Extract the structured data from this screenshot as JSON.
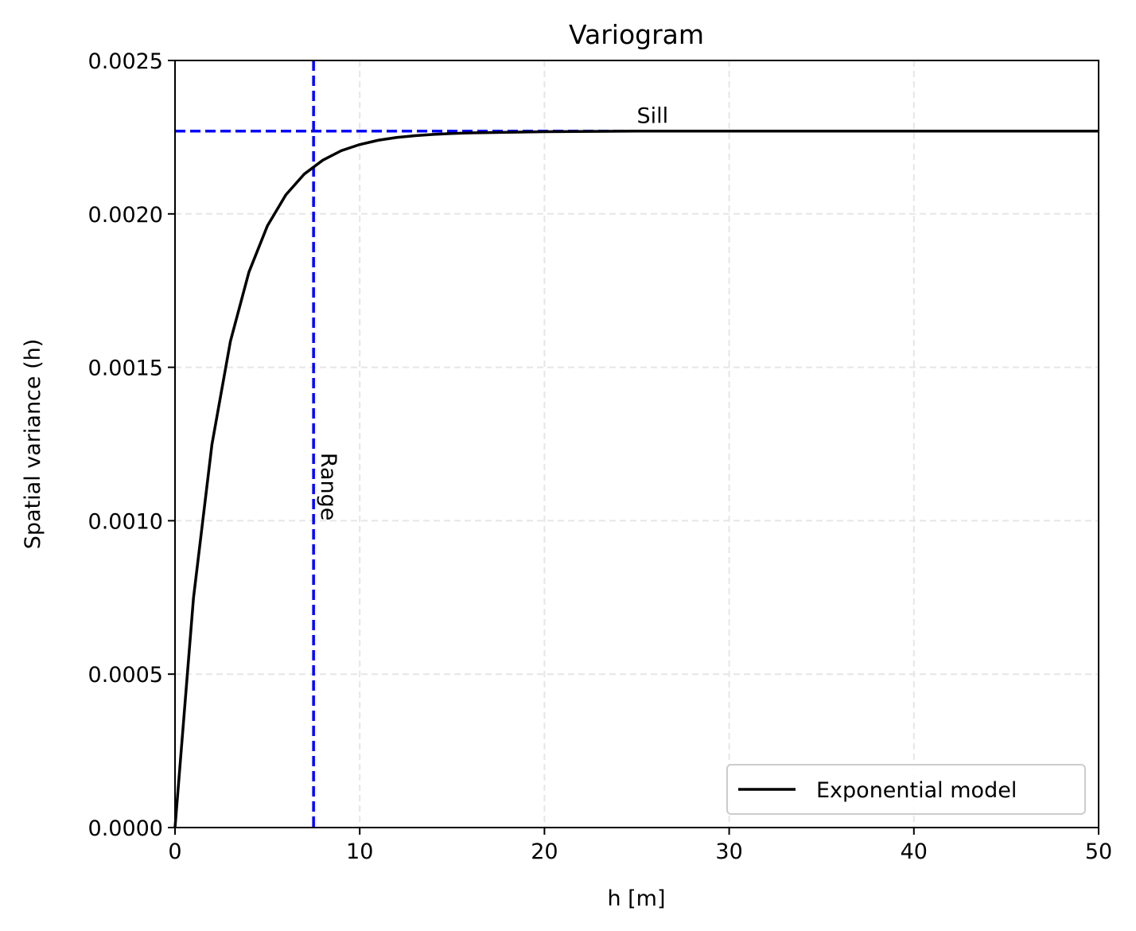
{
  "chart_data": {
    "type": "line",
    "title": "Variogram",
    "xlabel": "h [m]",
    "ylabel": "Spatial variance (h)",
    "xlim": [
      0,
      50
    ],
    "ylim": [
      0,
      0.0025
    ],
    "xticks": [
      0,
      10,
      20,
      30,
      40,
      50
    ],
    "xtick_labels": [
      "0",
      "10",
      "20",
      "30",
      "40",
      "50"
    ],
    "yticks": [
      0,
      0.0005,
      0.001,
      0.0015,
      0.002,
      0.0025
    ],
    "ytick_labels": [
      "0.0000",
      "0.0005",
      "0.0010",
      "0.0015",
      "0.0020",
      "0.0025"
    ],
    "grid": true,
    "legend_position": "lower-right",
    "series": [
      {
        "name": "Exponential model",
        "color": "#000000",
        "model": "exponential",
        "sill": 0.00227,
        "range": 7.5,
        "x": [
          0,
          1,
          2,
          3,
          4,
          5,
          6,
          7,
          8,
          9,
          10,
          11,
          12,
          13,
          14,
          15,
          16,
          17,
          18,
          19,
          20,
          25,
          30,
          35,
          40,
          45,
          50
        ],
        "y": [
          0,
          0.000748,
          0.001249,
          0.001585,
          0.00181,
          0.001961,
          0.002062,
          0.00213,
          0.002175,
          0.002206,
          0.002226,
          0.00224,
          0.002249,
          0.002255,
          0.002259,
          0.002262,
          0.002264,
          0.002265,
          0.002266,
          0.002267,
          0.002268,
          0.00227,
          0.00227,
          0.00227,
          0.00227,
          0.00227,
          0.00227
        ]
      }
    ],
    "reference_lines": [
      {
        "orientation": "horizontal",
        "value": 0.00227,
        "color": "#0000ff",
        "style": "dashed",
        "label": "Sill"
      },
      {
        "orientation": "vertical",
        "value": 7.5,
        "color": "#0000ff",
        "style": "dashed",
        "label": "Range"
      }
    ]
  }
}
